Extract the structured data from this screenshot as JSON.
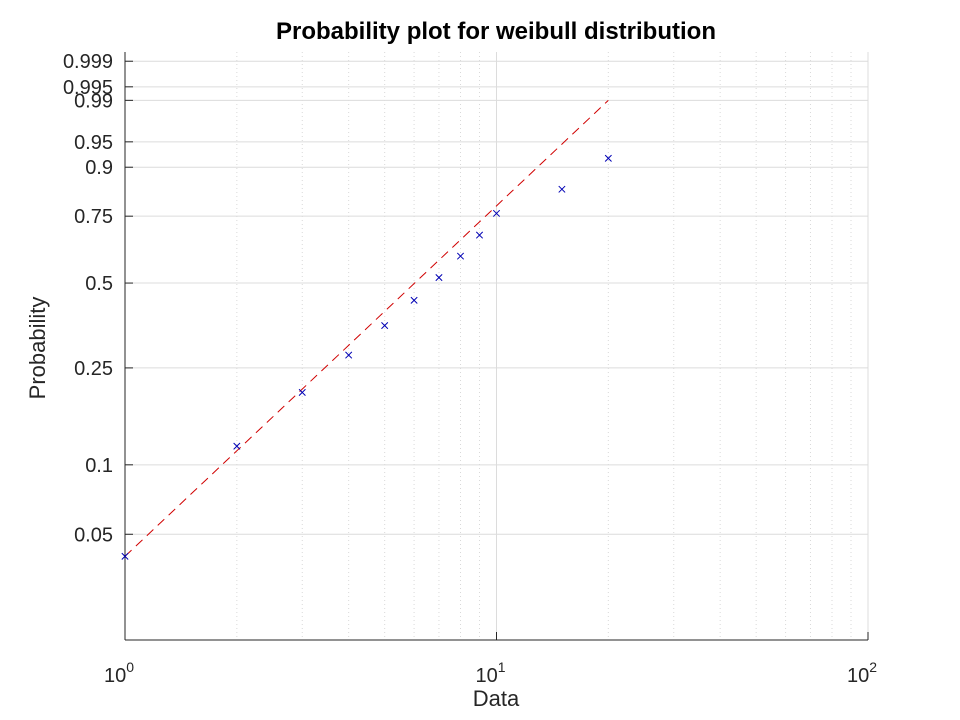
{
  "chart_data": {
    "type": "scatter",
    "title": "Probability plot for weibull distribution",
    "xlabel": "Data",
    "ylabel": "Probability",
    "x_scale": "log",
    "x_range": [
      1,
      100
    ],
    "x_ticks": [
      {
        "value": 1,
        "base": "10",
        "exp": "0"
      },
      {
        "value": 10,
        "base": "10",
        "exp": "1"
      },
      {
        "value": 100,
        "base": "10",
        "exp": "2"
      }
    ],
    "y_scale": "weibull-probability",
    "y_range": [
      0.017,
      0.9995
    ],
    "y_ticks": [
      {
        "value": 0.05,
        "label": "0.05"
      },
      {
        "value": 0.1,
        "label": "0.1"
      },
      {
        "value": 0.25,
        "label": "0.25"
      },
      {
        "value": 0.5,
        "label": "0.5"
      },
      {
        "value": 0.75,
        "label": "0.75"
      },
      {
        "value": 0.9,
        "label": "0.9"
      },
      {
        "value": 0.95,
        "label": "0.95"
      },
      {
        "value": 0.99,
        "label": "0.99"
      },
      {
        "value": 0.995,
        "label": "0.995"
      },
      {
        "value": 0.999,
        "label": "0.999"
      }
    ],
    "grid": true,
    "series": [
      {
        "style": "x-markers",
        "color": "#0000b4",
        "points": [
          {
            "x": 1,
            "y": 0.04
          },
          {
            "x": 2,
            "y": 0.12
          },
          {
            "x": 3,
            "y": 0.2
          },
          {
            "x": 4,
            "y": 0.28
          },
          {
            "x": 5,
            "y": 0.36
          },
          {
            "x": 6,
            "y": 0.44
          },
          {
            "x": 7,
            "y": 0.52
          },
          {
            "x": 8,
            "y": 0.6
          },
          {
            "x": 9,
            "y": 0.68
          },
          {
            "x": 10,
            "y": 0.76
          },
          {
            "x": 15,
            "y": 0.84
          },
          {
            "x": 20,
            "y": 0.92
          }
        ]
      },
      {
        "style": "dashed-line",
        "color": "#d00000",
        "points": [
          {
            "x": 1,
            "y": 0.04
          },
          {
            "x": 20,
            "y": 0.99
          }
        ]
      }
    ]
  }
}
